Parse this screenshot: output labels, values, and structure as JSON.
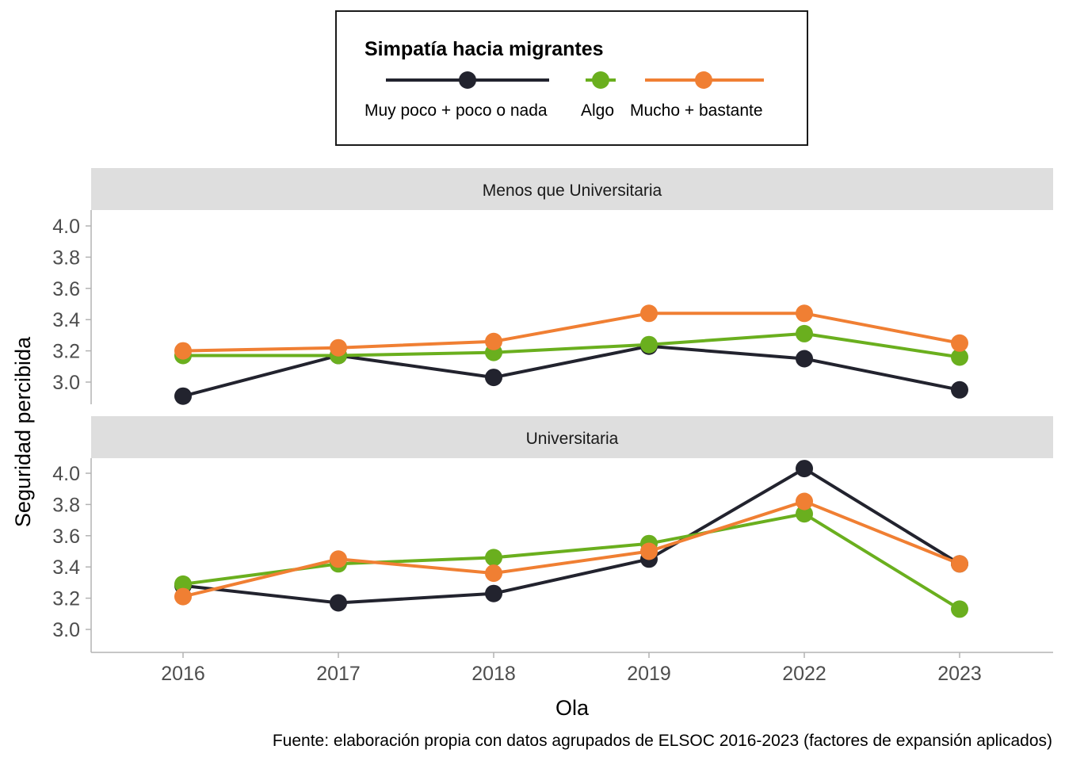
{
  "chart_data": {
    "type": "line",
    "legend": {
      "title": "Simpatía hacia migrantes",
      "position": "top"
    },
    "categories": [
      "2016",
      "2017",
      "2018",
      "2019",
      "2022",
      "2023"
    ],
    "xlabel": "Ola",
    "ylabel": "Seguridad percibida",
    "ylim": [
      2.9,
      4.08
    ],
    "yticks": [
      "3.0",
      "3.2",
      "3.4",
      "3.6",
      "3.8",
      "4.0"
    ],
    "caption": "Fuente: elaboración propia con datos agrupados de ELSOC 2016-2023 (factores de expansión aplicados)",
    "grid": false,
    "series_style": [
      {
        "name": "Muy poco + poco o nada",
        "color": "#22232e"
      },
      {
        "name": "Algo",
        "color": "#6aaf1e"
      },
      {
        "name": "Mucho + bastante",
        "color": "#f07f33"
      }
    ],
    "panels": [
      {
        "strip": "Menos que Universitaria",
        "series": [
          {
            "name": "Muy poco + poco o nada",
            "values": [
              2.91,
              3.17,
              3.03,
              3.23,
              3.15,
              2.95
            ]
          },
          {
            "name": "Algo",
            "values": [
              3.17,
              3.17,
              3.19,
              3.24,
              3.31,
              3.16
            ]
          },
          {
            "name": "Mucho + bastante",
            "values": [
              3.2,
              3.22,
              3.26,
              3.44,
              3.44,
              3.25
            ]
          }
        ]
      },
      {
        "strip": "Universitaria",
        "series": [
          {
            "name": "Muy poco + poco o nada",
            "values": [
              3.28,
              3.17,
              3.23,
              3.45,
              4.03,
              3.42
            ]
          },
          {
            "name": "Algo",
            "values": [
              3.29,
              3.42,
              3.46,
              3.55,
              3.74,
              3.13
            ]
          },
          {
            "name": "Mucho + bastante",
            "values": [
              3.21,
              3.45,
              3.36,
              3.5,
              3.82,
              3.42
            ]
          }
        ]
      }
    ]
  }
}
